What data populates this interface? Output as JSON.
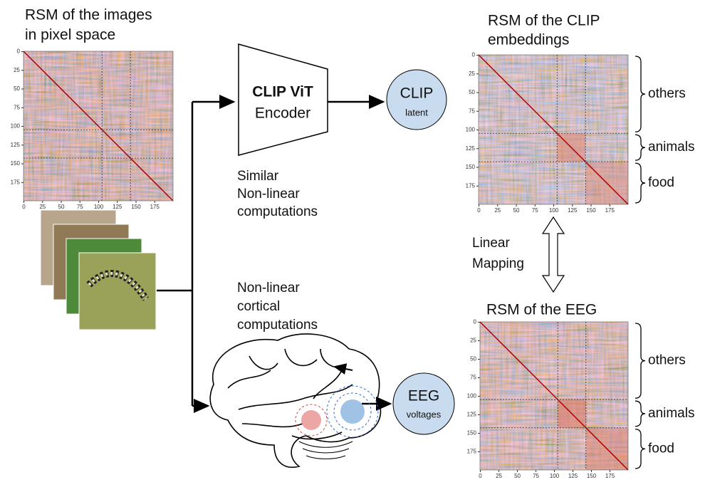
{
  "pixel_rsm": {
    "title": [
      "RSM of the images",
      "in pixel space"
    ],
    "xticks": [
      0,
      25,
      50,
      75,
      100,
      125,
      150,
      175
    ],
    "yticks": [
      0,
      25,
      50,
      75,
      100,
      125,
      150,
      175
    ]
  },
  "encoder": {
    "title": "CLIP ViT",
    "subtitle": "Encoder"
  },
  "clip_node": {
    "label": "CLIP",
    "sublabel": "latent"
  },
  "similar_note": [
    "Similar",
    "Non-linear",
    "computations"
  ],
  "cortical_note": [
    "Non-linear",
    "cortical",
    "computations"
  ],
  "eeg_node": {
    "label": "EEG",
    "sublabel": "voltages"
  },
  "clip_rsm": {
    "title": [
      "RSM of the CLIP",
      "embeddings"
    ],
    "groups": [
      "others",
      "animals",
      "food"
    ],
    "xticks": [
      0,
      25,
      50,
      75,
      100,
      125,
      150,
      175
    ],
    "yticks": [
      0,
      25,
      50,
      75,
      100,
      125,
      150,
      175
    ]
  },
  "mapping_note": [
    "Linear",
    "Mapping"
  ],
  "eeg_rsm": {
    "title": [
      "RSM of the EEG"
    ],
    "groups": [
      "others",
      "animals",
      "food"
    ],
    "xticks": [
      0,
      25,
      50,
      75,
      100,
      125,
      150,
      175
    ],
    "yticks": [
      0,
      25,
      50,
      75,
      100,
      125,
      150,
      175
    ]
  }
}
